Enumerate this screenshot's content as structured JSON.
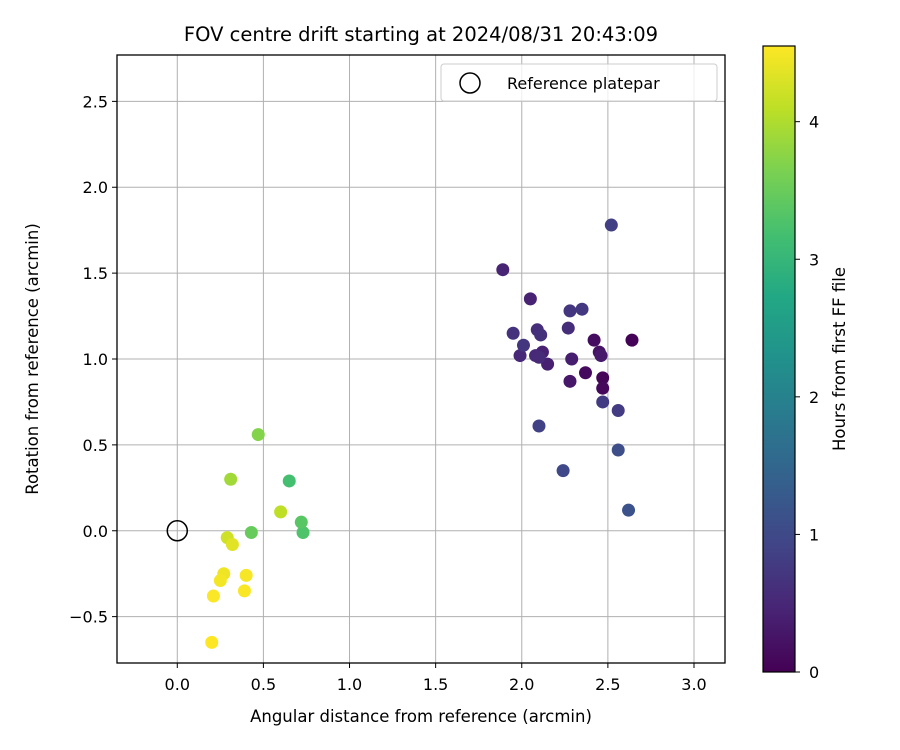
{
  "chart_data": {
    "type": "scatter",
    "title": "FOV centre drift starting at 2024/08/31 20:43:09",
    "xlabel": "Angular distance from reference (arcmin)",
    "ylabel": "Rotation from reference (arcmin)",
    "xlim": [
      -0.35,
      3.18
    ],
    "ylim": [
      -0.77,
      2.77
    ],
    "xticks": [
      0.0,
      0.5,
      1.0,
      1.5,
      2.0,
      2.5,
      3.0
    ],
    "yticks": [
      -0.5,
      0.0,
      0.5,
      1.0,
      1.5,
      2.0,
      2.5
    ],
    "xtick_labels": [
      "0.0",
      "0.5",
      "1.0",
      "1.5",
      "2.0",
      "2.5",
      "3.0"
    ],
    "ytick_labels": [
      "−0.5",
      "0.0",
      "0.5",
      "1.0",
      "1.5",
      "2.0",
      "2.5"
    ],
    "grid": true,
    "legend": {
      "placement": "top-right",
      "entries": [
        "Reference platepar"
      ]
    },
    "reference_point": {
      "x": 0.0,
      "y": 0.0,
      "marker": "open-circle",
      "label": "Reference platepar"
    },
    "colorbar": {
      "label": "Hours from first FF file",
      "colormap": "viridis",
      "range": [
        0,
        4.55
      ],
      "ticks": [
        0,
        1,
        2,
        3,
        4
      ],
      "tick_labels": [
        "0",
        "1",
        "2",
        "3",
        "4"
      ]
    },
    "points": [
      {
        "x": 2.64,
        "y": 1.11,
        "c": 0.03
      },
      {
        "x": 2.47,
        "y": 0.89,
        "c": 0.06
      },
      {
        "x": 2.47,
        "y": 0.83,
        "c": 0.09
      },
      {
        "x": 2.37,
        "y": 0.92,
        "c": 0.12
      },
      {
        "x": 2.42,
        "y": 1.11,
        "c": 0.15
      },
      {
        "x": 2.45,
        "y": 1.04,
        "c": 0.22
      },
      {
        "x": 2.28,
        "y": 0.87,
        "c": 0.3
      },
      {
        "x": 2.46,
        "y": 1.02,
        "c": 0.33
      },
      {
        "x": 2.29,
        "y": 1.0,
        "c": 0.37
      },
      {
        "x": 2.15,
        "y": 0.97,
        "c": 0.4
      },
      {
        "x": 2.12,
        "y": 1.04,
        "c": 0.42
      },
      {
        "x": 2.05,
        "y": 1.35,
        "c": 0.44
      },
      {
        "x": 1.89,
        "y": 1.52,
        "c": 0.45
      },
      {
        "x": 1.99,
        "y": 1.02,
        "c": 0.5
      },
      {
        "x": 2.08,
        "y": 1.02,
        "c": 0.52
      },
      {
        "x": 2.1,
        "y": 1.01,
        "c": 0.55
      },
      {
        "x": 2.27,
        "y": 1.18,
        "c": 0.58
      },
      {
        "x": 2.09,
        "y": 1.17,
        "c": 0.6
      },
      {
        "x": 2.11,
        "y": 1.14,
        "c": 0.62
      },
      {
        "x": 1.95,
        "y": 1.15,
        "c": 0.66
      },
      {
        "x": 2.01,
        "y": 1.08,
        "c": 0.7
      },
      {
        "x": 2.28,
        "y": 1.28,
        "c": 0.72
      },
      {
        "x": 2.35,
        "y": 1.29,
        "c": 0.74
      },
      {
        "x": 2.47,
        "y": 0.75,
        "c": 0.78
      },
      {
        "x": 2.56,
        "y": 0.7,
        "c": 0.8
      },
      {
        "x": 2.52,
        "y": 1.78,
        "c": 0.84
      },
      {
        "x": 2.1,
        "y": 0.61,
        "c": 0.88
      },
      {
        "x": 2.24,
        "y": 0.35,
        "c": 0.97
      },
      {
        "x": 2.56,
        "y": 0.47,
        "c": 1.08
      },
      {
        "x": 2.62,
        "y": 0.12,
        "c": 1.15
      },
      {
        "x": 0.65,
        "y": 0.29,
        "c": 3.18
      },
      {
        "x": 0.73,
        "y": -0.01,
        "c": 3.28
      },
      {
        "x": 0.72,
        "y": 0.05,
        "c": 3.36
      },
      {
        "x": 0.43,
        "y": -0.01,
        "c": 3.48
      },
      {
        "x": 0.47,
        "y": 0.56,
        "c": 3.7
      },
      {
        "x": 0.31,
        "y": 0.3,
        "c": 3.9
      },
      {
        "x": 0.6,
        "y": 0.11,
        "c": 4.1
      },
      {
        "x": 0.29,
        "y": -0.04,
        "c": 4.22
      },
      {
        "x": 0.32,
        "y": -0.08,
        "c": 4.35
      },
      {
        "x": 0.27,
        "y": -0.25,
        "c": 4.45
      },
      {
        "x": 0.25,
        "y": -0.29,
        "c": 4.48
      },
      {
        "x": 0.4,
        "y": -0.26,
        "c": 4.5
      },
      {
        "x": 0.39,
        "y": -0.35,
        "c": 4.52
      },
      {
        "x": 0.21,
        "y": -0.38,
        "c": 4.53
      },
      {
        "x": 0.2,
        "y": -0.65,
        "c": 4.55
      }
    ]
  }
}
